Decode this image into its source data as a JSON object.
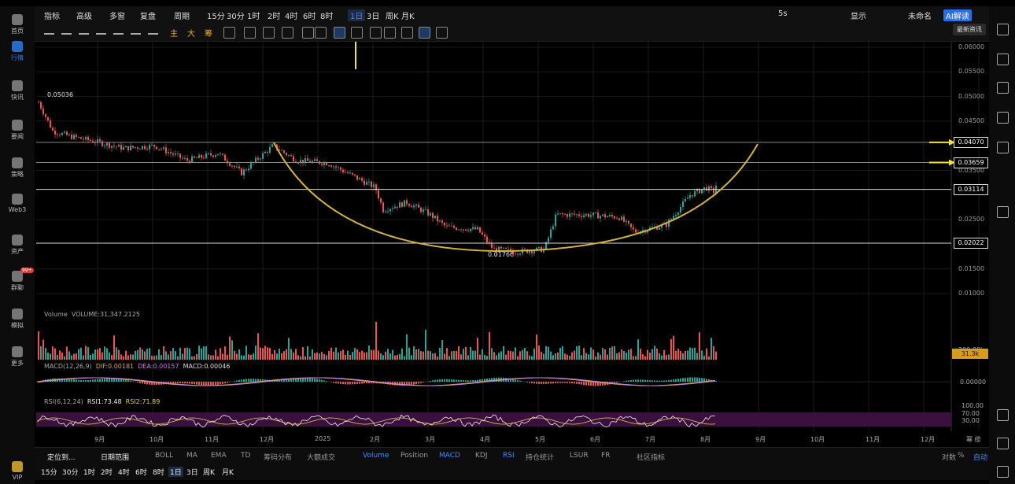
{
  "toolbar_top": {
    "items": [
      "指标",
      "高级",
      "多窗",
      "复盘",
      "周期",
      "15分",
      "30分",
      "1时",
      "2时",
      "4时",
      "6时",
      "8时",
      "1日",
      "3日",
      "周K",
      "月K"
    ],
    "active": "1日",
    "right": [
      "5s",
      "显示",
      "未命名",
      "AI解读"
    ],
    "tooltip": "最新资讯"
  },
  "toolbar_draw": {
    "text_items": [
      "主",
      "大",
      "筹"
    ]
  },
  "left_nav": [
    {
      "label": "首页",
      "icon": "home-icon"
    },
    {
      "label": "行情",
      "icon": "chart-icon",
      "active": true
    },
    {
      "label": "快讯",
      "icon": "news-icon"
    },
    {
      "label": "要闻",
      "icon": "doc-icon"
    },
    {
      "label": "策略",
      "icon": "robot-icon"
    },
    {
      "label": "Web3",
      "icon": "web3-icon"
    },
    {
      "label": "资产",
      "icon": "wallet-icon"
    },
    {
      "label": "群聊",
      "icon": "chat-icon",
      "badge": "99+"
    },
    {
      "label": "模拟",
      "icon": "sim-icon"
    },
    {
      "label": "更多",
      "icon": "grid-icon"
    },
    {
      "label": "VIP",
      "icon": "diamond-icon"
    }
  ],
  "chart": {
    "high_label": "0.05036",
    "low_label": "0.01766",
    "price_axis": [
      "0.06000",
      "0.05500",
      "0.05000",
      "0.04500",
      "0.03500",
      "0.02500",
      "0.01500",
      "0.01000"
    ],
    "levels": [
      "0.04070",
      "0.03659",
      "0.03114",
      "0.02022"
    ],
    "months": [
      "9月",
      "10月",
      "11月",
      "12月",
      "2025",
      "2月",
      "3月",
      "4月",
      "5月",
      "6月",
      "7月",
      "8月",
      "9月",
      "10月",
      "11月",
      "12月"
    ],
    "colors": {
      "up": "#26a69a",
      "down": "#ef5350",
      "cup": "#d4b33a",
      "arrow": "#f5e33a"
    }
  },
  "volume": {
    "title": "Volume",
    "value": "VOLUME:31,347.2125",
    "axis": "200.00k",
    "tag": "31.3k"
  },
  "macd": {
    "title": "MACD(12,26,9)",
    "dif": "DIF:0.00181",
    "dea": "DEA:0.00157",
    "macd": "MACD:0.00046",
    "axis": "0.00000"
  },
  "rsi": {
    "title": "RSI(6,12,24)",
    "rsi1": "RSI1:73.48",
    "rsi2": "RSI2:71.89",
    "axis": [
      "100.00",
      "70.00",
      "30.00"
    ]
  },
  "bottom_tabs": {
    "left": [
      "定位到...",
      "日期范围"
    ],
    "indicators": [
      "BOLL",
      "MA",
      "EMA",
      "TD",
      "筹码分布",
      "大额成交",
      "Volume",
      "Position",
      "MACD",
      "KDJ",
      "RSI",
      "持仓统计",
      "LSUR",
      "FR",
      "社区指标"
    ],
    "active": [
      "Volume",
      "MACD",
      "RSI"
    ],
    "right": [
      "对数",
      "%",
      "自动"
    ]
  },
  "bottom_periods": {
    "items": [
      "15分",
      "30分",
      "1时",
      "2时",
      "4时",
      "6时",
      "8时",
      "1日",
      "3日",
      "周K",
      "月K"
    ],
    "active": "1日"
  },
  "axis_corner": "幂 缆"
}
